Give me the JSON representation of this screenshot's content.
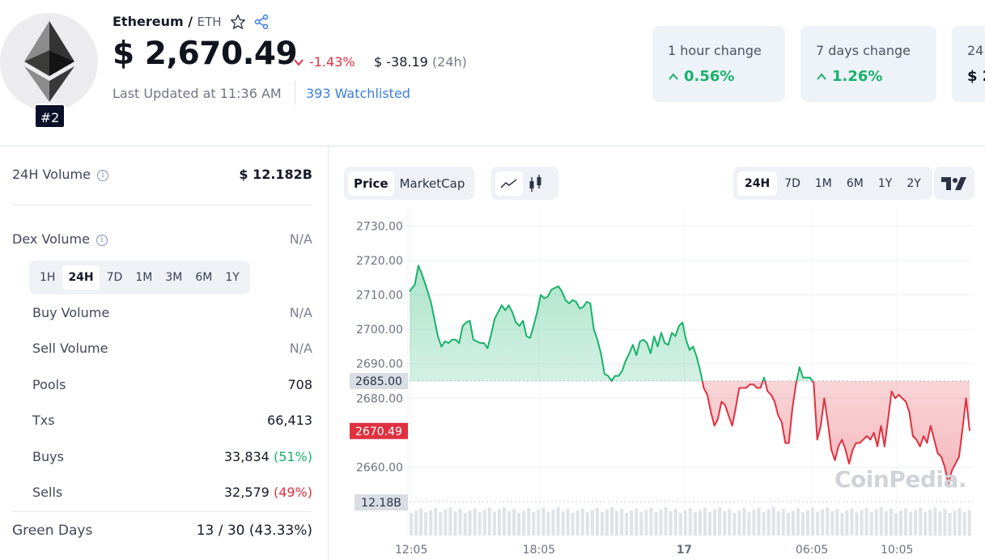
{
  "coin": {
    "name": "Ethereum",
    "separator": "/",
    "symbol": "ETH",
    "rank": "#2",
    "price": "$ 2,670.49",
    "pct_change": "-1.43%",
    "abs_change": "$ -38.19",
    "abs_change_period": "(24h)",
    "last_updated": "Last Updated at 11:36 AM",
    "watchlisted": "393 Watchlisted"
  },
  "change_cards": [
    {
      "label": "1 hour change",
      "value": "0.56%"
    },
    {
      "label": "7 days change",
      "value": "1.26%"
    },
    {
      "label": "24",
      "value": "$ 2"
    }
  ],
  "stats": {
    "volume_24h": {
      "label": "24H Volume",
      "value": "$ 12.182B"
    },
    "dex_volume": {
      "label": "Dex Volume",
      "value": "N/A"
    },
    "dex_ranges": [
      "1H",
      "24H",
      "7D",
      "1M",
      "3M",
      "6M",
      "1Y"
    ],
    "dex_active_range": "24H",
    "buy_volume": {
      "label": "Buy Volume",
      "value": "N/A"
    },
    "sell_volume": {
      "label": "Sell Volume",
      "value": "N/A"
    },
    "pools": {
      "label": "Pools",
      "value": "708"
    },
    "txs": {
      "label": "Txs",
      "value": "66,413"
    },
    "buys": {
      "label": "Buys",
      "value": "33,834",
      "pct": "(51%)"
    },
    "sells": {
      "label": "Sells",
      "value": "32,579",
      "pct": "(49%)"
    },
    "green_days": {
      "label": "Green Days",
      "value": "13 / 30 (43.33%)"
    }
  },
  "chart_controls": {
    "metric_tabs": [
      "Price",
      "MarketCap"
    ],
    "active_metric": "Price",
    "chart_types": [
      "line-chart-icon",
      "candlestick-icon"
    ],
    "time_ranges": [
      "24H",
      "7D",
      "1M",
      "6M",
      "1Y",
      "2Y"
    ],
    "active_time_range": "24H",
    "provider_icon": "tradingview-icon"
  },
  "watermark": "CoinPedia.",
  "colors": {
    "positive": "#17b26a",
    "negative": "#e0313f",
    "brand_blue": "#3a7fdd",
    "rank_bg": "#0b1029"
  },
  "chart_data": {
    "type": "area",
    "title": "",
    "xlabel": "",
    "ylabel": "",
    "ylim": [
      2654,
      2735
    ],
    "y_ticks": [
      "2730.00",
      "2720.00",
      "2710.00",
      "2700.00",
      "2690.00",
      "2680.00",
      "2660.00"
    ],
    "baseline": {
      "value": 2685.0,
      "label": "2685.00"
    },
    "current_price": {
      "value": 2670.49,
      "label": "2670.49"
    },
    "volume_label": "12.18B",
    "x_ticks": [
      {
        "label": "12:05",
        "t": 1
      },
      {
        "label": "18:05",
        "t": 73
      },
      {
        "label": "17",
        "t": 155
      },
      {
        "label": "06:05",
        "t": 227
      },
      {
        "label": "10:05",
        "t": 275
      }
    ],
    "t_max": 299,
    "grid": true,
    "series": [
      {
        "values": [
          [
            0,
            2711
          ],
          [
            3,
            2713
          ],
          [
            5,
            2718.5
          ],
          [
            7,
            2716
          ],
          [
            9,
            2713
          ],
          [
            12,
            2708
          ],
          [
            14,
            2703
          ],
          [
            16,
            2698
          ],
          [
            18,
            2695
          ],
          [
            20,
            2696.5
          ],
          [
            22,
            2696
          ],
          [
            24,
            2697
          ],
          [
            26,
            2697
          ],
          [
            28,
            2696
          ],
          [
            30,
            2701
          ],
          [
            32,
            2702
          ],
          [
            34,
            2702.5
          ],
          [
            36,
            2697
          ],
          [
            38,
            2696.5
          ],
          [
            40,
            2696
          ],
          [
            42,
            2696
          ],
          [
            44,
            2694.5
          ],
          [
            46,
            2698.5
          ],
          [
            48,
            2703
          ],
          [
            50,
            2705
          ],
          [
            52,
            2707
          ],
          [
            54,
            2705.5
          ],
          [
            56,
            2707
          ],
          [
            58,
            2705
          ],
          [
            60,
            2702
          ],
          [
            62,
            2701
          ],
          [
            64,
            2702.5
          ],
          [
            66,
            2698
          ],
          [
            68,
            2697.5
          ],
          [
            70,
            2701
          ],
          [
            72,
            2705
          ],
          [
            74,
            2710
          ],
          [
            76,
            2709
          ],
          [
            78,
            2709.5
          ],
          [
            80,
            2711.5
          ],
          [
            82,
            2712
          ],
          [
            84,
            2712.5
          ],
          [
            86,
            2711
          ],
          [
            88,
            2708.5
          ],
          [
            90,
            2707.5
          ],
          [
            92,
            2708.5
          ],
          [
            94,
            2708
          ],
          [
            96,
            2706
          ],
          [
            98,
            2706.5
          ],
          [
            100,
            2708
          ],
          [
            102,
            2707.5
          ],
          [
            104,
            2700
          ],
          [
            106,
            2697
          ],
          [
            108,
            2693
          ],
          [
            110,
            2687
          ],
          [
            112,
            2686.5
          ],
          [
            114,
            2685
          ],
          [
            116,
            2686.5
          ],
          [
            118,
            2686.5
          ],
          [
            120,
            2688
          ],
          [
            122,
            2691
          ],
          [
            124,
            2693
          ],
          [
            126,
            2695.5
          ],
          [
            128,
            2692.5
          ],
          [
            130,
            2696.5
          ],
          [
            132,
            2697
          ],
          [
            134,
            2696
          ],
          [
            136,
            2693
          ],
          [
            138,
            2698
          ],
          [
            140,
            2695
          ],
          [
            142,
            2699
          ],
          [
            144,
            2696
          ],
          [
            146,
            2695.5
          ],
          [
            148,
            2699
          ],
          [
            150,
            2698
          ],
          [
            152,
            2701
          ],
          [
            154,
            2702
          ],
          [
            156,
            2697
          ],
          [
            158,
            2694
          ],
          [
            160,
            2695
          ],
          [
            162,
            2692
          ],
          [
            164,
            2688
          ],
          [
            166,
            2683
          ],
          [
            168,
            2681
          ],
          [
            170,
            2676
          ],
          [
            172,
            2672
          ],
          [
            174,
            2674
          ],
          [
            176,
            2679
          ],
          [
            178,
            2678
          ],
          [
            180,
            2675
          ],
          [
            182,
            2672
          ],
          [
            184,
            2677
          ],
          [
            186,
            2683
          ],
          [
            188,
            2683
          ],
          [
            190,
            2683
          ],
          [
            192,
            2684
          ],
          [
            194,
            2684
          ],
          [
            196,
            2683
          ],
          [
            198,
            2683
          ],
          [
            200,
            2686
          ],
          [
            202,
            2682
          ],
          [
            204,
            2681
          ],
          [
            206,
            2679
          ],
          [
            208,
            2675
          ],
          [
            210,
            2673
          ],
          [
            212,
            2667
          ],
          [
            214,
            2667
          ],
          [
            216,
            2677
          ],
          [
            218,
            2684
          ],
          [
            220,
            2689
          ],
          [
            222,
            2686
          ],
          [
            224,
            2686
          ],
          [
            226,
            2686
          ],
          [
            228,
            2684.5
          ],
          [
            230,
            2668
          ],
          [
            232,
            2672
          ],
          [
            234,
            2680
          ],
          [
            236,
            2673
          ],
          [
            238,
            2665
          ],
          [
            240,
            2662
          ],
          [
            242,
            2666
          ],
          [
            244,
            2668
          ],
          [
            246,
            2665
          ],
          [
            248,
            2661
          ],
          [
            250,
            2665
          ],
          [
            252,
            2667
          ],
          [
            254,
            2667
          ],
          [
            256,
            2668
          ],
          [
            258,
            2669
          ],
          [
            260,
            2668
          ],
          [
            262,
            2670
          ],
          [
            264,
            2666
          ],
          [
            266,
            2672
          ],
          [
            268,
            2666
          ],
          [
            270,
            2674
          ],
          [
            272,
            2682
          ],
          [
            274,
            2680
          ],
          [
            276,
            2681
          ],
          [
            278,
            2680
          ],
          [
            280,
            2679
          ],
          [
            282,
            2676
          ],
          [
            284,
            2669
          ],
          [
            286,
            2668
          ],
          [
            288,
            2666
          ],
          [
            290,
            2669
          ],
          [
            292,
            2667
          ],
          [
            294,
            2672
          ],
          [
            296,
            2668
          ],
          [
            298,
            2664
          ],
          [
            300,
            2663
          ],
          [
            302,
            2660
          ],
          [
            304,
            2655
          ],
          [
            306,
            2659
          ],
          [
            308,
            2661
          ],
          [
            310,
            2663
          ],
          [
            312,
            2671
          ],
          [
            314,
            2680
          ],
          [
            316,
            2670.5
          ]
        ]
      }
    ]
  }
}
